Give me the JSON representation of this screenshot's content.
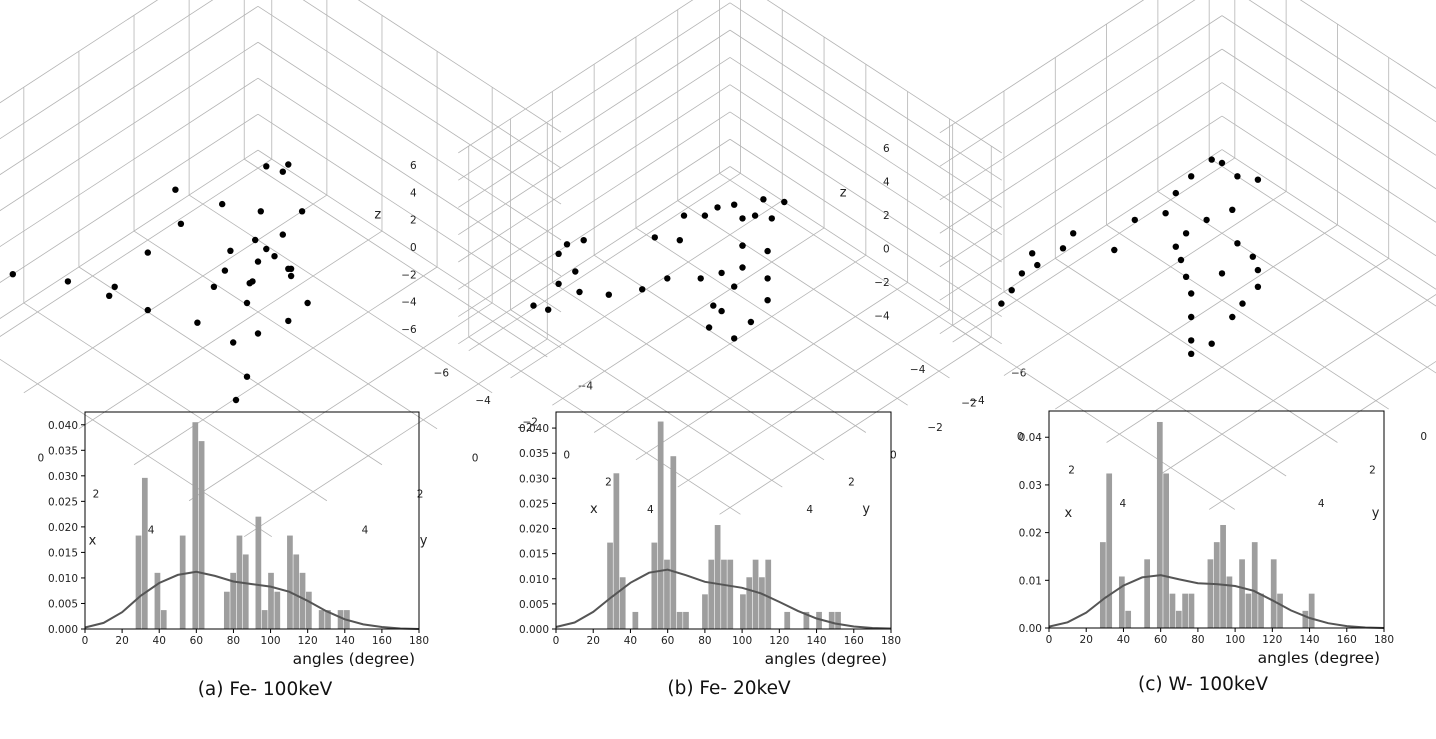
{
  "colors": {
    "bar": "#9e9e9e",
    "kde": "#555555",
    "point": "#000000",
    "grid": "#b4b4b4"
  },
  "panels": [
    {
      "caption": "(a) Fe- 100keV",
      "scatter": {
        "type": "scatter3d",
        "axis_labels": {
          "x": "x",
          "y": "y",
          "z": "z"
        },
        "x_ticks": [
          "−4",
          "−2",
          "0",
          "2",
          "4"
        ],
        "y_ticks": [
          "−4",
          "−2",
          "0",
          "2",
          "4"
        ],
        "z_ticks": [
          "−4",
          "−2",
          "0",
          "2",
          "4",
          "6"
        ],
        "points": [
          [
            -4.6,
            4.3,
            -1.2
          ],
          [
            -3.6,
            3.3,
            -1.6
          ],
          [
            -2.6,
            2.8,
            -1.9
          ],
          [
            -2.2,
            3.0,
            -0.8
          ],
          [
            -1.6,
            2.4,
            -2.1
          ],
          [
            -2.0,
            2.0,
            0.3
          ],
          [
            -1.4,
            1.4,
            1.9
          ],
          [
            -1.4,
            1.6,
            4.0
          ],
          [
            -0.6,
            0.7,
            3.1
          ],
          [
            -0.7,
            0.9,
            -1.4
          ],
          [
            -0.6,
            0.4,
            0.2
          ],
          [
            0.0,
            0.0,
            -0.2
          ],
          [
            0.6,
            0.0,
            0.7
          ],
          [
            -0.2,
            -0.3,
            2.1
          ],
          [
            0.1,
            0.2,
            1.3
          ],
          [
            0.0,
            -0.3,
            4.8
          ],
          [
            0.4,
            -0.5,
            4.7
          ],
          [
            0.1,
            -1.0,
            4.3
          ],
          [
            1.3,
            0.4,
            3.0
          ],
          [
            1.1,
            -0.5,
            3.2
          ],
          [
            1.4,
            1.1,
            3.0
          ],
          [
            2.2,
            1.1,
            2.7
          ],
          [
            2.6,
            1.4,
            3.0
          ],
          [
            2.9,
            1.1,
            1.5
          ],
          [
            2.4,
            1.3,
            0.2
          ],
          [
            1.8,
            1.8,
            -0.6
          ],
          [
            2.4,
            2.8,
            -1.4
          ],
          [
            2.8,
            3.6,
            -1.5
          ],
          [
            0.8,
            1.0,
            0.5
          ],
          [
            0.3,
            0.6,
            -0.5
          ],
          [
            -0.3,
            0.9,
            -0.1
          ],
          [
            0.9,
            1.3,
            -0.3
          ],
          [
            1.1,
            2.0,
            -1.6
          ],
          [
            -0.2,
            2.0,
            -1.8
          ],
          [
            1.8,
            0.6,
            1.8
          ]
        ]
      },
      "histogram": {
        "type": "bar",
        "xlabel": "angles (degree)",
        "ylabel": "",
        "xlim": [
          0,
          180
        ],
        "ylim": [
          0,
          0.0425
        ],
        "x_ticks": [
          0,
          20,
          40,
          60,
          80,
          100,
          120,
          140,
          160,
          180
        ],
        "y_ticks": [
          "0.000",
          "0.005",
          "0.010",
          "0.015",
          "0.020",
          "0.025",
          "0.030",
          "0.035",
          "0.040"
        ],
        "bin_width": 3.4,
        "bin_starts": [
          27.3,
          30.7,
          37.5,
          40.9,
          51.1,
          57.9,
          61.3,
          74.9,
          78.3,
          81.7,
          85.1,
          91.9,
          95.3,
          98.7,
          102.1,
          108.9,
          112.3,
          115.7,
          119.1,
          126.0,
          129.4,
          136.2,
          139.6
        ],
        "values": [
          0.0183,
          0.0296,
          0.011,
          0.0037,
          0.0183,
          0.0405,
          0.0368,
          0.0073,
          0.011,
          0.0183,
          0.0146,
          0.022,
          0.0037,
          0.011,
          0.0073,
          0.0183,
          0.0146,
          0.011,
          0.0073,
          0.0037,
          0.0037,
          0.0037,
          0.0037
        ],
        "kde": {
          "x": [
            0,
            10,
            20,
            30,
            40,
            50,
            60,
            70,
            80,
            90,
            100,
            110,
            120,
            130,
            140,
            150,
            160,
            170,
            180
          ],
          "y": [
            0.0003,
            0.0012,
            0.0033,
            0.0065,
            0.009,
            0.0106,
            0.0112,
            0.0104,
            0.0093,
            0.0088,
            0.0083,
            0.0073,
            0.0055,
            0.0035,
            0.0019,
            0.0009,
            0.0004,
            0.0001,
            0.0
          ]
        }
      }
    },
    {
      "caption": "(b) Fe- 20keV",
      "scatter": {
        "type": "scatter3d",
        "axis_labels": {
          "x": "x",
          "y": "y",
          "z": "z"
        },
        "x_ticks": [
          "−6",
          "−4",
          "−2",
          "0",
          "2",
          "4"
        ],
        "y_ticks": [
          "−6",
          "−4",
          "−2",
          "0",
          "2",
          "4"
        ],
        "z_ticks": [
          "−6",
          "−4",
          "−2",
          "0",
          "2",
          "4",
          "6"
        ],
        "points": [
          [
            -4.8,
            4.6,
            -3.4
          ],
          [
            -4.4,
            4.3,
            -3.6
          ],
          [
            -4.2,
            4.0,
            -1.8
          ],
          [
            -3.8,
            3.4,
            -2.6
          ],
          [
            -4.0,
            4.2,
            0.8
          ],
          [
            -3.8,
            4.0,
            1.5
          ],
          [
            -3.4,
            3.6,
            1.8
          ],
          [
            -3.6,
            3.8,
            -0.5
          ],
          [
            -3.0,
            2.8,
            -2.6
          ],
          [
            -2.2,
            2.0,
            -2.2
          ],
          [
            -1.4,
            1.6,
            -1.0
          ],
          [
            -1.8,
            1.8,
            1.8
          ],
          [
            -1.2,
            1.2,
            1.6
          ],
          [
            -1.4,
            0.8,
            2.8
          ],
          [
            -0.6,
            0.6,
            3.4
          ],
          [
            -0.2,
            0.4,
            4.2
          ],
          [
            0.2,
            0.0,
            4.4
          ],
          [
            0.0,
            -0.6,
            2.6
          ],
          [
            0.4,
            -0.2,
            1.4
          ],
          [
            0.8,
            0.2,
            0.6
          ],
          [
            0.2,
            0.6,
            0.0
          ],
          [
            -0.4,
            1.0,
            -0.6
          ],
          [
            0.6,
            1.4,
            -1.2
          ],
          [
            1.0,
            2.0,
            -1.8
          ],
          [
            1.2,
            0.6,
            3.0
          ],
          [
            1.6,
            0.4,
            5.4
          ],
          [
            2.0,
            0.0,
            5.2
          ],
          [
            1.4,
            -0.2,
            5.8
          ],
          [
            2.2,
            -0.4,
            6.2
          ],
          [
            2.6,
            0.8,
            4.2
          ],
          [
            2.8,
            1.0,
            2.6
          ],
          [
            3.2,
            1.4,
            1.8
          ],
          [
            3.0,
            2.0,
            0.6
          ],
          [
            2.6,
            2.4,
            -0.6
          ],
          [
            2.2,
            2.6,
            1.2
          ],
          [
            1.8,
            1.6,
            1.6
          ]
        ]
      },
      "histogram": {
        "type": "bar",
        "xlabel": "angles (degree)",
        "ylabel": "",
        "xlim": [
          0,
          180
        ],
        "ylim": [
          0,
          0.0432
        ],
        "x_ticks": [
          0,
          20,
          40,
          60,
          80,
          100,
          120,
          140,
          160,
          180
        ],
        "y_ticks": [
          "0.000",
          "0.005",
          "0.010",
          "0.015",
          "0.020",
          "0.025",
          "0.030",
          "0.035",
          "0.040"
        ],
        "bin_width": 3.4,
        "bin_starts": [
          27.5,
          30.9,
          34.3,
          41.1,
          51.3,
          54.7,
          58.1,
          61.5,
          64.9,
          68.3,
          78.5,
          81.9,
          85.3,
          88.7,
          92.1,
          98.9,
          102.3,
          105.7,
          109.1,
          112.5,
          122.7,
          133.0,
          139.8,
          146.6,
          150.0
        ],
        "values": [
          0.0172,
          0.031,
          0.0103,
          0.0034,
          0.0172,
          0.0413,
          0.0138,
          0.0344,
          0.0034,
          0.0034,
          0.0069,
          0.0138,
          0.0207,
          0.0138,
          0.0138,
          0.0069,
          0.0103,
          0.0138,
          0.0103,
          0.0138,
          0.0034,
          0.0034,
          0.0034,
          0.0034,
          0.0034
        ],
        "kde": {
          "x": [
            0,
            10,
            20,
            30,
            40,
            50,
            60,
            70,
            80,
            90,
            100,
            110,
            120,
            130,
            140,
            150,
            160,
            170,
            180
          ],
          "y": [
            0.0004,
            0.0013,
            0.0034,
            0.0064,
            0.0092,
            0.0112,
            0.0118,
            0.0107,
            0.0094,
            0.0088,
            0.0082,
            0.0071,
            0.0054,
            0.0036,
            0.0021,
            0.0011,
            0.0005,
            0.0002,
            0.0001
          ]
        }
      }
    },
    {
      "caption": "(c) W- 100keV",
      "scatter": {
        "type": "scatter3d",
        "axis_labels": {
          "x": "x",
          "y": "y",
          "z": "z"
        },
        "x_ticks": [
          "−4",
          "−2",
          "0",
          "2",
          "4"
        ],
        "y_ticks": [
          "−4",
          "−2",
          "0",
          "2",
          "4"
        ],
        "z_ticks": [
          "−4",
          "−2",
          "0",
          "2",
          "4",
          "6"
        ],
        "points": [
          [
            -4.4,
            4.2,
            -3.4
          ],
          [
            -4.2,
            4.0,
            -2.6
          ],
          [
            -4.0,
            3.8,
            -1.6
          ],
          [
            -3.8,
            3.6,
            -0.4
          ],
          [
            -3.6,
            3.6,
            -0.9
          ],
          [
            -3.0,
            3.2,
            0.3
          ],
          [
            -2.8,
            3.0,
            1.2
          ],
          [
            -2.2,
            2.0,
            -0.2
          ],
          [
            -1.8,
            1.6,
            1.6
          ],
          [
            -1.2,
            1.0,
            2.0
          ],
          [
            -1.0,
            0.8,
            3.2
          ],
          [
            -0.6,
            0.6,
            4.4
          ],
          [
            -0.2,
            0.2,
            5.4
          ],
          [
            0.0,
            0.0,
            5.2
          ],
          [
            0.4,
            -0.2,
            4.6
          ],
          [
            0.8,
            -0.6,
            4.4
          ],
          [
            0.6,
            0.2,
            3.2
          ],
          [
            0.0,
            0.6,
            2.4
          ],
          [
            -0.4,
            1.0,
            1.6
          ],
          [
            -0.6,
            1.2,
            0.8
          ],
          [
            -0.2,
            1.4,
            0.6
          ],
          [
            0.2,
            1.6,
            0.2
          ],
          [
            0.6,
            1.8,
            -0.2
          ],
          [
            1.0,
            2.2,
            -0.8
          ],
          [
            1.4,
            2.6,
            -1.4
          ],
          [
            1.6,
            2.8,
            -1.8
          ],
          [
            1.8,
            1.2,
            3.4
          ],
          [
            2.2,
            1.0,
            2.8
          ],
          [
            2.6,
            1.2,
            2.6
          ],
          [
            2.8,
            1.4,
            2.0
          ],
          [
            2.6,
            1.8,
            1.2
          ],
          [
            2.4,
            2.0,
            0.4
          ],
          [
            2.0,
            2.4,
            -1.2
          ],
          [
            1.0,
            1.0,
            0.6
          ]
        ]
      },
      "histogram": {
        "type": "bar",
        "xlabel": "angles (degree)",
        "ylabel": "",
        "xlim": [
          0,
          180
        ],
        "ylim": [
          0,
          0.0455
        ],
        "x_ticks": [
          0,
          20,
          40,
          60,
          80,
          100,
          120,
          140,
          160,
          180
        ],
        "y_ticks": [
          "0.00",
          "0.01",
          "0.02",
          "0.03",
          "0.04"
        ],
        "bin_width": 3.4,
        "bin_starts": [
          27.4,
          30.8,
          37.6,
          41.0,
          51.2,
          58.0,
          61.4,
          64.8,
          68.2,
          71.6,
          75.0,
          85.2,
          88.6,
          92.0,
          95.4,
          102.2,
          105.6,
          109.0,
          112.4,
          119.2,
          122.6,
          136.2,
          139.6
        ],
        "values": [
          0.018,
          0.0324,
          0.0108,
          0.0036,
          0.0144,
          0.0432,
          0.0324,
          0.0072,
          0.0036,
          0.0072,
          0.0072,
          0.0144,
          0.018,
          0.0216,
          0.0108,
          0.0144,
          0.0072,
          0.018,
          0.0072,
          0.0144,
          0.0072,
          0.0036,
          0.0072
        ],
        "kde": {
          "x": [
            0,
            10,
            20,
            30,
            40,
            50,
            60,
            70,
            80,
            90,
            100,
            110,
            120,
            130,
            140,
            150,
            160,
            170,
            180
          ],
          "y": [
            0.0003,
            0.0012,
            0.0032,
            0.0063,
            0.0089,
            0.0106,
            0.0111,
            0.0102,
            0.0094,
            0.0092,
            0.0088,
            0.0078,
            0.0058,
            0.0037,
            0.0021,
            0.001,
            0.0004,
            0.0001,
            0.0
          ]
        }
      }
    }
  ]
}
